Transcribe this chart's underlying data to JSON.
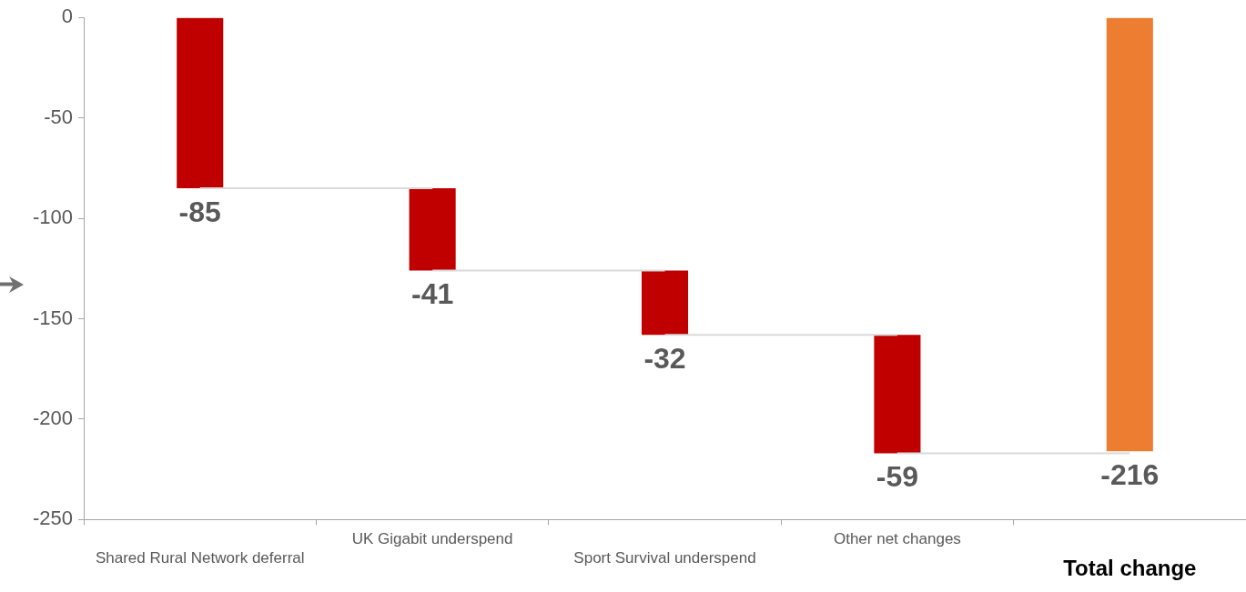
{
  "chart_data": {
    "type": "bar",
    "categories": [
      "Shared Rural Network deferral",
      "UK Gigabit underspend",
      "Sport Survival underspend",
      "Other net changes",
      "Total change"
    ],
    "values": [
      -85,
      -41,
      -32,
      -59,
      -216
    ],
    "base": [
      0,
      -85,
      -126,
      -158,
      0
    ],
    "colors": [
      "#c00000",
      "#c00000",
      "#c00000",
      "#c00000",
      "#ed7d31"
    ],
    "ylim": [
      -250,
      0
    ],
    "yticks": [
      -250,
      -200,
      -150,
      -100,
      -50,
      0
    ],
    "grid": false,
    "legend": false,
    "data_labels": true
  }
}
